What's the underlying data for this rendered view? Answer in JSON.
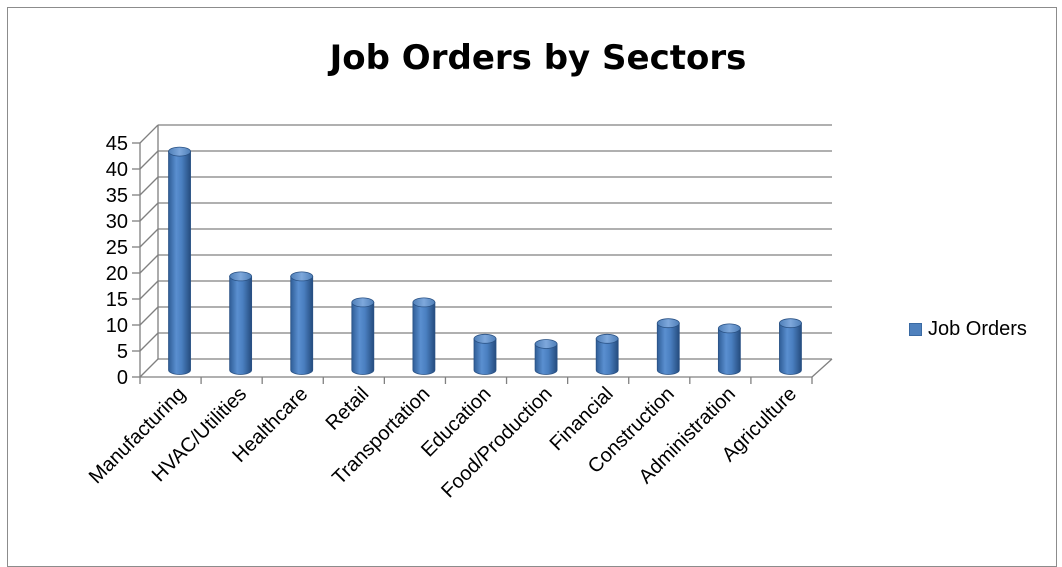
{
  "chart_data": {
    "type": "bar",
    "title": "Job Orders by Sectors",
    "categories": [
      "Manufacturing",
      "HVAC/Utilities",
      "Healthcare",
      "Retail",
      "Transportation",
      "Education",
      "Food/Production",
      "Financial",
      "Construction",
      "Administration",
      "Agriculture"
    ],
    "series": [
      {
        "name": "Job Orders",
        "values": [
          42,
          18,
          18,
          13,
          13,
          6,
          5,
          6,
          9,
          8,
          9
        ],
        "color": "#4f81bd"
      }
    ],
    "ylim": [
      0,
      45
    ],
    "yticks": [
      "0",
      "5",
      "10",
      "15",
      "20",
      "25",
      "30",
      "35",
      "40",
      "45"
    ],
    "grid": true,
    "legend_position": "right",
    "style": "3d-cylinder"
  }
}
